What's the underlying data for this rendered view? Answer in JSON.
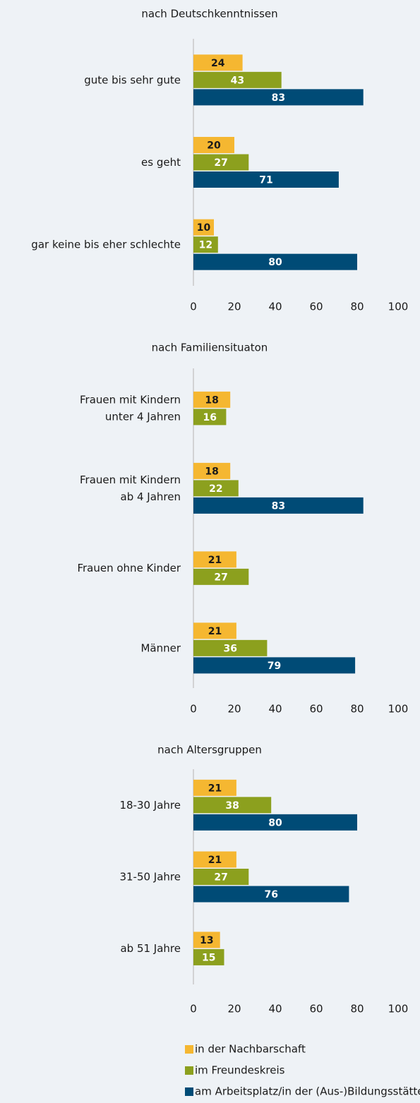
{
  "legend": [
    {
      "name": "in der Nachbarschaft",
      "color": "#f5b731"
    },
    {
      "name": "im Freundeskreis",
      "color": "#8ca01e"
    },
    {
      "name": "am Arbeitsplatz/in der (Aus-)Bildungsstätte",
      "color": "#004b76"
    }
  ],
  "chart_data": [
    {
      "type": "bar",
      "orientation": "horizontal",
      "title": "nach Deutschkenntnissen",
      "categories": [
        "gute bis sehr gute",
        "es geht",
        "gar keine bis eher schlechte"
      ],
      "series": [
        {
          "values": [
            24,
            20,
            10
          ]
        },
        {
          "values": [
            43,
            27,
            12
          ]
        },
        {
          "values": [
            83,
            71,
            80
          ]
        }
      ],
      "xlim": [
        0,
        100
      ],
      "xticks": [
        0,
        20,
        40,
        60,
        80,
        100
      ]
    },
    {
      "type": "bar",
      "orientation": "horizontal",
      "title": "nach Familiensituaton",
      "categories": [
        "Frauen mit Kindern\nunter 4 Jahren",
        "Frauen mit Kindern\nab 4 Jahren",
        "Frauen ohne Kinder",
        "Männer"
      ],
      "series": [
        {
          "values": [
            18,
            18,
            21,
            21
          ]
        },
        {
          "values": [
            16,
            22,
            27,
            36
          ]
        },
        {
          "values": [
            null,
            83,
            null,
            79
          ]
        }
      ],
      "xlim": [
        0,
        100
      ],
      "xticks": [
        0,
        20,
        40,
        60,
        80,
        100
      ]
    },
    {
      "type": "bar",
      "orientation": "horizontal",
      "title": "nach Altersgruppen",
      "categories": [
        "18-30 Jahre",
        "31-50 Jahre",
        "ab 51 Jahre"
      ],
      "series": [
        {
          "values": [
            21,
            21,
            13
          ]
        },
        {
          "values": [
            38,
            27,
            15
          ]
        },
        {
          "values": [
            80,
            76,
            null
          ]
        }
      ],
      "xlim": [
        0,
        100
      ],
      "xticks": [
        0,
        20,
        40,
        60,
        80,
        100
      ]
    }
  ]
}
